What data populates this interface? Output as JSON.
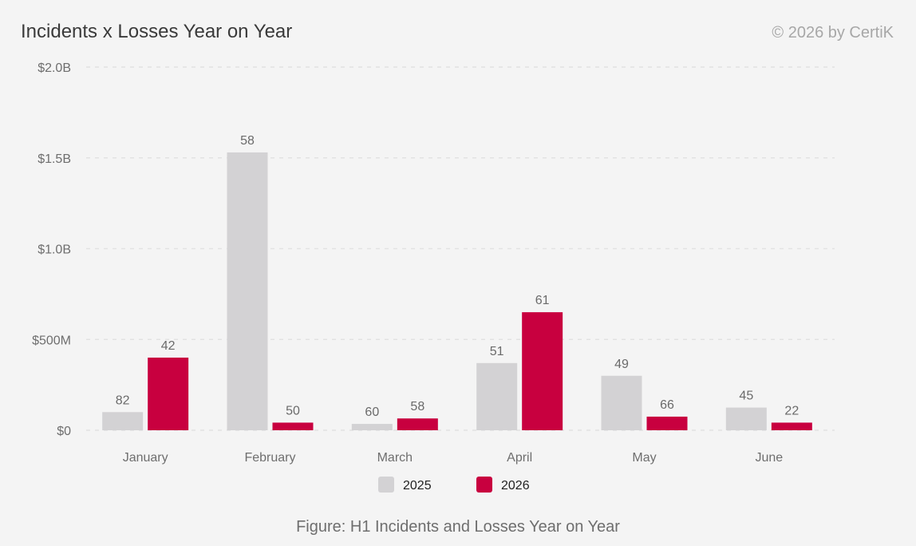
{
  "title": "Incidents x Losses Year on Year",
  "credit": "© 2026 by CertiK",
  "caption": "Figure: H1 Incidents and Losses Year on Year",
  "chart_data": {
    "type": "bar",
    "categories": [
      "January",
      "February",
      "March",
      "April",
      "May",
      "June"
    ],
    "series": [
      {
        "name": "2025",
        "color": "#d3d2d4",
        "values": [
          100000000,
          1530000000,
          35000000,
          370000000,
          300000000,
          125000000
        ],
        "labels": [
          "82",
          "58",
          "60",
          "51",
          "49",
          "45"
        ]
      },
      {
        "name": "2026",
        "color": "#c8003f",
        "values": [
          400000000,
          42000000,
          65000000,
          650000000,
          75000000,
          42000000
        ],
        "labels": [
          "42",
          "50",
          "58",
          "61",
          "66",
          "22"
        ]
      }
    ],
    "ylim": [
      0,
      2000000000
    ],
    "yticks": [
      {
        "value": 0,
        "label": "$0"
      },
      {
        "value": 500000000,
        "label": "$500M"
      },
      {
        "value": 1000000000,
        "label": "$1.0B"
      },
      {
        "value": 1500000000,
        "label": "$1.5B"
      },
      {
        "value": 2000000000,
        "label": "$2.0B"
      }
    ],
    "grid": true,
    "legend": "bottom-center"
  }
}
